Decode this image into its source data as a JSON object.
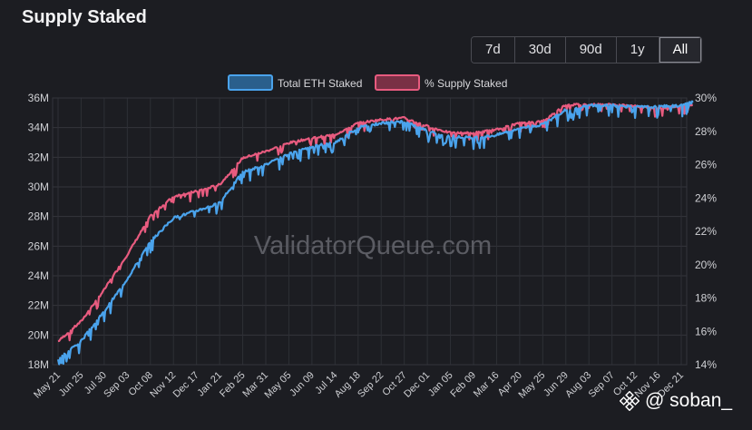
{
  "title": "Supply Staked",
  "ranges": [
    {
      "label": "7d",
      "active": false
    },
    {
      "label": "30d",
      "active": false
    },
    {
      "label": "90d",
      "active": false
    },
    {
      "label": "1y",
      "active": false
    },
    {
      "label": "All",
      "active": true
    }
  ],
  "watermark": "ValidatorQueue.com",
  "brand_tag": "@ soban_",
  "chart_data": {
    "type": "line",
    "legend": [
      "Total ETH Staked",
      "% Supply Staked"
    ],
    "legend_position": "top",
    "grid": true,
    "x_ticks": [
      "May 21",
      "Jun 25",
      "Jul 30",
      "Sep 03",
      "Oct 08",
      "Nov 12",
      "Dec 17",
      "Jan 21",
      "Feb 25",
      "Mar 31",
      "May 05",
      "Jun 09",
      "Jul 14",
      "Aug 18",
      "Sep 22",
      "Oct 27",
      "Dec 01",
      "Jan 05",
      "Feb 09",
      "Mar 16",
      "Apr 20",
      "May 25",
      "Jun 29",
      "Aug 03",
      "Sep 07",
      "Oct 12",
      "Nov 16",
      "Dec 21"
    ],
    "y_left": {
      "ticks": [
        "18M",
        "20M",
        "22M",
        "24M",
        "26M",
        "28M",
        "30M",
        "32M",
        "34M",
        "36M"
      ],
      "range": [
        18,
        36
      ],
      "unit": "M"
    },
    "y_right": {
      "ticks": [
        "14%",
        "16%",
        "18%",
        "20%",
        "22%",
        "24%",
        "26%",
        "28%",
        "30%"
      ],
      "range": [
        14,
        30
      ],
      "unit": "%"
    },
    "series": [
      {
        "name": "Total ETH Staked",
        "color": "#4aa3ec",
        "x_index": [
          0,
          1,
          2,
          3,
          4,
          5,
          6,
          7,
          8,
          9,
          10,
          11,
          12,
          13,
          14,
          15,
          16,
          17,
          18,
          19,
          20,
          21,
          22,
          23,
          24,
          25,
          26,
          27,
          27.5
        ],
        "values": [
          18.4,
          19.6,
          21.6,
          23.8,
          26.3,
          27.9,
          28.4,
          28.9,
          31.0,
          31.5,
          32.2,
          32.7,
          33.0,
          34.0,
          34.3,
          34.4,
          33.8,
          33.4,
          33.3,
          33.5,
          34.0,
          34.2,
          35.2,
          35.5,
          35.5,
          35.4,
          35.4,
          35.5,
          35.7
        ]
      },
      {
        "name": "% Supply Staked",
        "color": "#e85b7f",
        "x_index": [
          0,
          1,
          2,
          3,
          4,
          5,
          6,
          7,
          8,
          9,
          10,
          11,
          12,
          13,
          14,
          15,
          16,
          17,
          18,
          19,
          20,
          21,
          22,
          23,
          24,
          25,
          26,
          27,
          27.5
        ],
        "values": [
          15.4,
          16.6,
          18.5,
          20.6,
          22.9,
          24.1,
          24.4,
          24.8,
          26.4,
          26.8,
          27.3,
          27.6,
          27.8,
          28.5,
          28.7,
          28.8,
          28.3,
          27.9,
          27.9,
          28.1,
          28.5,
          28.6,
          29.6,
          29.6,
          29.6,
          29.5,
          29.4,
          29.5,
          29.6
        ]
      }
    ]
  }
}
